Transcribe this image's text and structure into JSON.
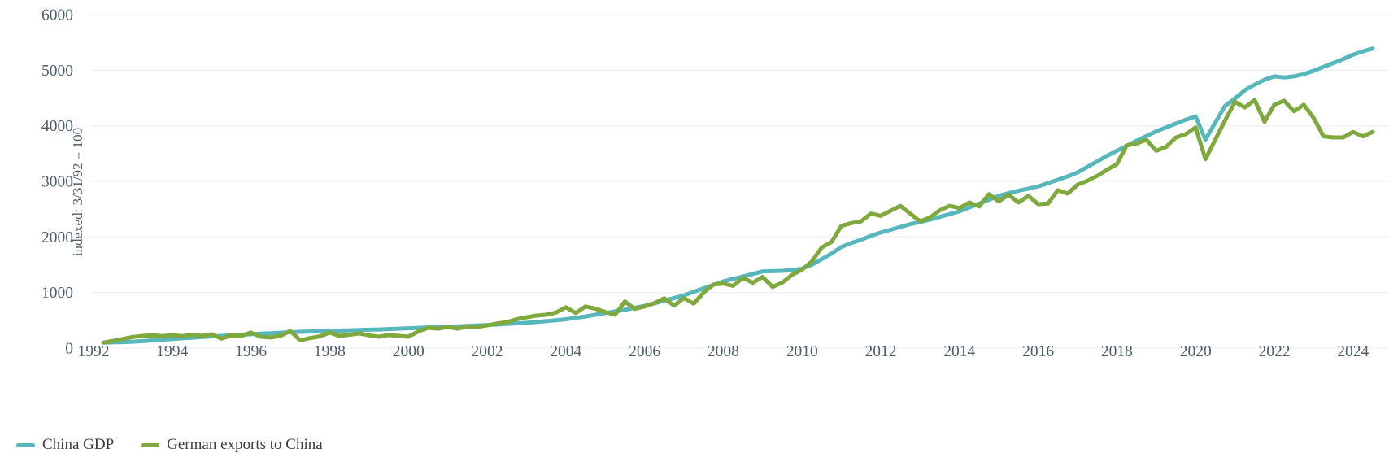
{
  "colors": {
    "background": "#ffffff",
    "gridline": "#e9edf0",
    "axis_text": "#4e5f6a",
    "legend_text": "#3c3c3c",
    "series_teal": "#57b7bd",
    "series_green": "#7fa83d"
  },
  "chart_data": {
    "type": "line",
    "title": "",
    "xlabel": "",
    "ylabel": "indexed: 3/31/92 = 100",
    "grid": "horizontal",
    "legend_position": "bottom-left",
    "x_start": 1992.25,
    "x_step": 0.25,
    "x_axis": {
      "base_year": 1992,
      "ticks": [
        "1992",
        "1994",
        "1996",
        "1998",
        "2000",
        "2002",
        "2004",
        "2006",
        "2008",
        "2010",
        "2012",
        "2014",
        "2016",
        "2018",
        "2020",
        "2022",
        "2024"
      ]
    },
    "y_axis": {
      "min": 0,
      "max": 6000,
      "tick_step": 1000,
      "ticks": [
        "0",
        "1000",
        "2000",
        "3000",
        "4000",
        "5000",
        "6000"
      ]
    },
    "series": [
      {
        "name": "China GDP",
        "color": "#57b7bd",
        "values": [
          100,
          104,
          109,
          115,
          126,
          139,
          152,
          165,
          177,
          188,
          199,
          210,
          220,
          230,
          240,
          250,
          259,
          268,
          277,
          285,
          292,
          298,
          304,
          310,
          315,
          320,
          325,
          330,
          335,
          342,
          350,
          357,
          364,
          371,
          378,
          385,
          392,
          400,
          408,
          415,
          425,
          435,
          445,
          455,
          470,
          485,
          500,
          520,
          545,
          570,
          600,
          630,
          660,
          690,
          725,
          760,
          807,
          855,
          902,
          950,
          1012,
          1075,
          1137,
          1200,
          1245,
          1290,
          1335,
          1380,
          1385,
          1390,
          1400,
          1430,
          1500,
          1600,
          1700,
          1820,
          1890,
          1950,
          2020,
          2080,
          2130,
          2180,
          2230,
          2270,
          2310,
          2360,
          2410,
          2460,
          2530,
          2600,
          2670,
          2740,
          2790,
          2830,
          2870,
          2910,
          2970,
          3030,
          3090,
          3160,
          3260,
          3360,
          3460,
          3550,
          3640,
          3730,
          3815,
          3900,
          3970,
          4040,
          4110,
          4170,
          3750,
          4060,
          4360,
          4490,
          4640,
          4740,
          4830,
          4890,
          4870,
          4890,
          4930,
          4990,
          5060,
          5130,
          5200,
          5280,
          5340,
          5390
        ]
      },
      {
        "name": "German exports to China",
        "color": "#7fa83d",
        "values": [
          100,
          130,
          165,
          200,
          220,
          230,
          215,
          235,
          215,
          240,
          220,
          250,
          170,
          230,
          220,
          279,
          205,
          191,
          220,
          309,
          140,
          180,
          210,
          279,
          220,
          240,
          265,
          230,
          205,
          235,
          220,
          205,
          300,
          366,
          350,
          381,
          351,
          390,
          380,
          410,
          440,
          468,
          520,
          555,
          586,
          600,
          640,
          735,
          630,
          750,
          710,
          650,
          600,
          840,
          705,
          750,
          810,
          895,
          765,
          900,
          800,
          1000,
          1146,
          1160,
          1120,
          1265,
          1175,
          1280,
          1100,
          1180,
          1320,
          1410,
          1560,
          1810,
          1910,
          2200,
          2250,
          2280,
          2420,
          2380,
          2470,
          2560,
          2420,
          2280,
          2350,
          2480,
          2560,
          2520,
          2620,
          2550,
          2770,
          2640,
          2760,
          2620,
          2740,
          2590,
          2600,
          2840,
          2780,
          2940,
          3010,
          3100,
          3210,
          3310,
          3650,
          3680,
          3750,
          3550,
          3620,
          3790,
          3850,
          3970,
          3400,
          3750,
          4100,
          4430,
          4330,
          4465,
          4070,
          4380,
          4450,
          4260,
          4380,
          4140,
          3810,
          3790,
          3790,
          3890,
          3810,
          3890
        ]
      }
    ]
  },
  "legend": {
    "items": [
      {
        "label": "China GDP"
      },
      {
        "label": "German exports to China"
      }
    ]
  }
}
